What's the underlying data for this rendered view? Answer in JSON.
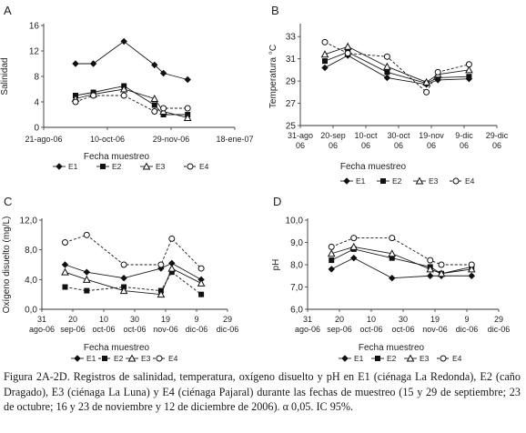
{
  "caption": "Figura 2A-2D. Registros de salinidad, temperatura, oxígeno disuelto y pH en E1 (ciénaga La Redonda), E2 (caño Dragado), E3 (ciénaga La Luna) y E4 (ciénaga Pajaral) durante las fechas de muestreo (15 y 29 de septiembre; 23 de octubre; 16 y 23 de noviembre y 12 de diciembre de 2006). α 0,05. IC 95%.",
  "chart_data": [
    {
      "panel": "A",
      "type": "line",
      "ylabel": "Salinidad",
      "xlabel": "Fecha muestreo",
      "ylim": [
        0,
        16
      ],
      "yticks": [
        0,
        4,
        8,
        12,
        16
      ],
      "ytick_labels": [
        "0",
        "4",
        "8",
        "12",
        "16"
      ],
      "xlim": [
        0,
        150
      ],
      "xticks": [
        0,
        50,
        100,
        150
      ],
      "xtick_labels": [
        "21-ago-06",
        "10-oct-06",
        "29-nov-06",
        "18-ene-07"
      ],
      "x": [
        25,
        39,
        63,
        87,
        94,
        113
      ],
      "series": [
        {
          "name": "E1",
          "marker": "diamond",
          "dash": "",
          "values": [
            10,
            10,
            13.5,
            9.8,
            8.5,
            7.5
          ]
        },
        {
          "name": "E2",
          "marker": "square",
          "dash": "",
          "values": [
            5,
            5.5,
            6.5,
            3.5,
            2,
            2
          ]
        },
        {
          "name": "E3",
          "marker": "triangle",
          "dash": "",
          "values": [
            4.5,
            5.2,
            6,
            4.5,
            2.5,
            1.5
          ]
        },
        {
          "name": "E4",
          "marker": "circle",
          "dash": "3,2",
          "values": [
            4,
            5,
            5,
            2.5,
            3,
            3
          ]
        }
      ],
      "legend": [
        "E1",
        "E2",
        "E3",
        "E4"
      ]
    },
    {
      "panel": "B",
      "type": "line",
      "ylabel": "Temperatura °C",
      "xlabel": "Fecha muestreo",
      "ylim": [
        25,
        34
      ],
      "yticks": [
        25,
        27,
        29,
        31,
        33
      ],
      "ytick_labels": [
        "25",
        "27",
        "29",
        "31",
        "33"
      ],
      "xlim": [
        0,
        120
      ],
      "xticks": [
        0,
        20,
        40,
        60,
        80,
        100,
        120
      ],
      "xtick_labels": [
        "31-ago 06",
        "20-sep 06",
        "10-oct 06",
        "30-oct 06",
        "19-nov 06",
        "9-dic 06",
        "29-dic 06"
      ],
      "x": [
        15,
        29,
        53,
        77,
        84,
        103
      ],
      "series": [
        {
          "name": "E1",
          "marker": "diamond",
          "dash": "",
          "values": [
            30.2,
            31.3,
            29.3,
            28.7,
            29.1,
            29.2
          ]
        },
        {
          "name": "E2",
          "marker": "square",
          "dash": "",
          "values": [
            30.8,
            31.6,
            29.8,
            28.8,
            29.3,
            29.4
          ]
        },
        {
          "name": "E3",
          "marker": "triangle",
          "dash": "",
          "values": [
            31.4,
            32.1,
            30.3,
            28.9,
            29.6,
            30
          ]
        },
        {
          "name": "E4",
          "marker": "circle",
          "dash": "3,2",
          "values": [
            32.5,
            31.5,
            31.2,
            28,
            29.8,
            30.5
          ]
        }
      ],
      "legend": [
        "E1",
        "E2",
        "E3",
        "E4"
      ]
    },
    {
      "panel": "C",
      "type": "line",
      "ylabel": "Oxígeno disuelto (mg/L)",
      "xlabel": "Fecha muestreo",
      "ylim": [
        0,
        12
      ],
      "yticks": [
        0,
        4,
        8,
        12
      ],
      "ytick_labels": [
        "0,0",
        "4,0",
        "8,0",
        "12,0"
      ],
      "xlim": [
        0,
        120
      ],
      "xticks": [
        0,
        20,
        40,
        60,
        80,
        100,
        120
      ],
      "xtick_labels": [
        "31 ago-06",
        "20 sep-06",
        "10 oct-06",
        "30 oct-06",
        "19 nov-06",
        "9 dic-06",
        "29 dic-06"
      ],
      "x": [
        15,
        29,
        53,
        77,
        84,
        103
      ],
      "series": [
        {
          "name": "E1",
          "marker": "diamond",
          "dash": "",
          "values": [
            6,
            5,
            4.2,
            5.5,
            6.2,
            4
          ]
        },
        {
          "name": "E2",
          "marker": "square",
          "dash": "3,2",
          "values": [
            3,
            2.5,
            3,
            2.5,
            5,
            2
          ]
        },
        {
          "name": "E3",
          "marker": "triangle",
          "dash": "",
          "values": [
            5,
            4,
            2.5,
            2,
            5.5,
            3.5
          ]
        },
        {
          "name": "E4",
          "marker": "circle",
          "dash": "3,2",
          "values": [
            9,
            10,
            6,
            6,
            9.5,
            5.5
          ]
        }
      ],
      "legend": [
        "E1",
        "E2",
        "E3",
        "E4"
      ]
    },
    {
      "panel": "D",
      "type": "line",
      "ylabel": "pH",
      "xlabel": "Fecha muestreo",
      "ylim": [
        6,
        10
      ],
      "yticks": [
        6,
        7,
        8,
        9,
        10
      ],
      "ytick_labels": [
        "6,0",
        "7,0",
        "8,0",
        "9,0",
        "10,0"
      ],
      "xlim": [
        0,
        120
      ],
      "xticks": [
        0,
        20,
        40,
        60,
        80,
        100,
        120
      ],
      "xtick_labels": [
        "31 ago-06",
        "20 sep-06",
        "10 oct-06",
        "30 oct-06",
        "19 nov-06",
        "9 dic-06",
        "29 dic-06"
      ],
      "x": [
        15,
        29,
        53,
        77,
        84,
        103
      ],
      "series": [
        {
          "name": "E1",
          "marker": "diamond",
          "dash": "",
          "values": [
            7.8,
            8.3,
            7.4,
            7.5,
            7.5,
            7.5
          ]
        },
        {
          "name": "E2",
          "marker": "square",
          "dash": "",
          "values": [
            8.2,
            8.7,
            8.3,
            7.9,
            7.6,
            7.9
          ]
        },
        {
          "name": "E3",
          "marker": "triangle",
          "dash": "",
          "values": [
            8.5,
            8.8,
            8.5,
            7.8,
            7.6,
            7.8
          ]
        },
        {
          "name": "E4",
          "marker": "circle",
          "dash": "3,2",
          "values": [
            8.8,
            9.2,
            9.2,
            8.2,
            8,
            8
          ]
        }
      ],
      "legend": [
        "E1",
        "E2",
        "E3",
        "E4"
      ]
    }
  ]
}
